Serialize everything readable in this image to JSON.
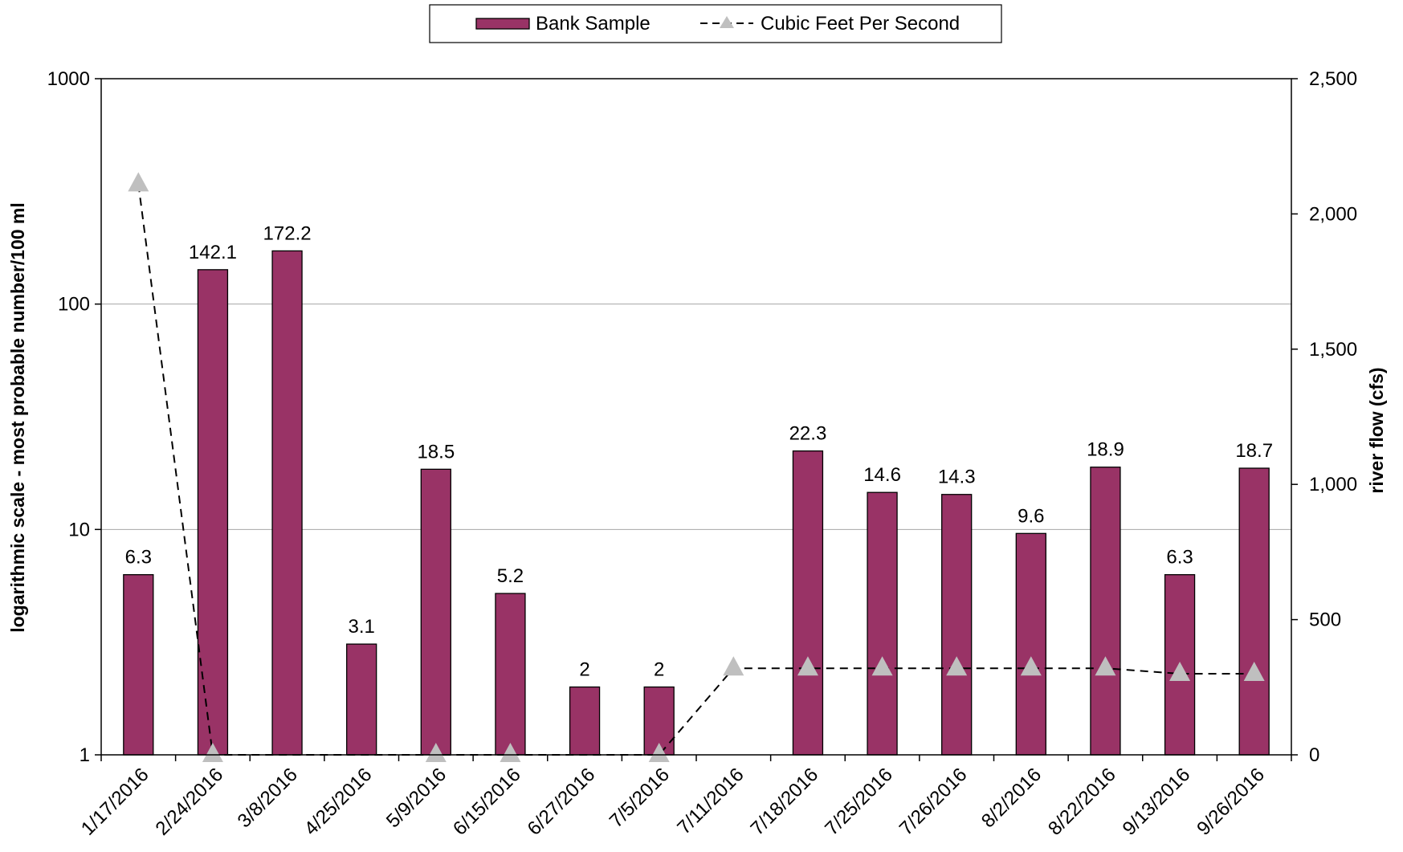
{
  "chart_data": {
    "type": "bar",
    "title": "",
    "categories": [
      "1/17/2016",
      "2/24/2016",
      "3/8/2016",
      "4/25/2016",
      "5/9/2016",
      "6/15/2016",
      "6/27/2016",
      "7/5/2016",
      "7/11/2016",
      "7/18/2016",
      "7/25/2016",
      "7/26/2016",
      "8/2/2016",
      "8/22/2016",
      "9/13/2016",
      "9/26/2016"
    ],
    "series": [
      {
        "name": "Bank Sample",
        "type": "bar",
        "axis": "left",
        "color": "#993366",
        "values": [
          6.3,
          142.1,
          172.2,
          3.1,
          18.5,
          5.2,
          2,
          2,
          null,
          22.3,
          14.6,
          14.3,
          9.6,
          18.9,
          6.3,
          18.7
        ],
        "labels": [
          "6.3",
          "142.1",
          "172.2",
          "3.1",
          "18.5",
          "5.2",
          "2",
          "2",
          "",
          "22.3",
          "14.6",
          "14.3",
          "9.6",
          "18.9",
          "6.3",
          "18.7"
        ]
      },
      {
        "name": "Cubic Feet Per Second",
        "type": "line",
        "axis": "right",
        "line_style": "dashed",
        "marker": "triangle",
        "color": "#000000",
        "marker_color": "#bfbfbf",
        "values": [
          2110,
          0,
          null,
          null,
          0,
          0,
          null,
          0,
          320,
          320,
          320,
          320,
          320,
          320,
          300,
          300
        ]
      }
    ],
    "y_left": {
      "label": "logarithmic scale - most probable number/100 ml",
      "scale": "log",
      "ylim": [
        1,
        1000
      ],
      "ticks": [
        "1",
        "10",
        "100",
        "1000"
      ]
    },
    "y_right": {
      "label": "river flow (cfs)",
      "scale": "linear",
      "ylim": [
        0,
        2500
      ],
      "ticks": [
        "0",
        "500",
        "1,000",
        "1,500",
        "2,000",
        "2,500"
      ]
    },
    "grid": true,
    "legend": "top-center",
    "legend_entries": [
      "Bank Sample",
      "Cubic Feet Per Second"
    ]
  }
}
